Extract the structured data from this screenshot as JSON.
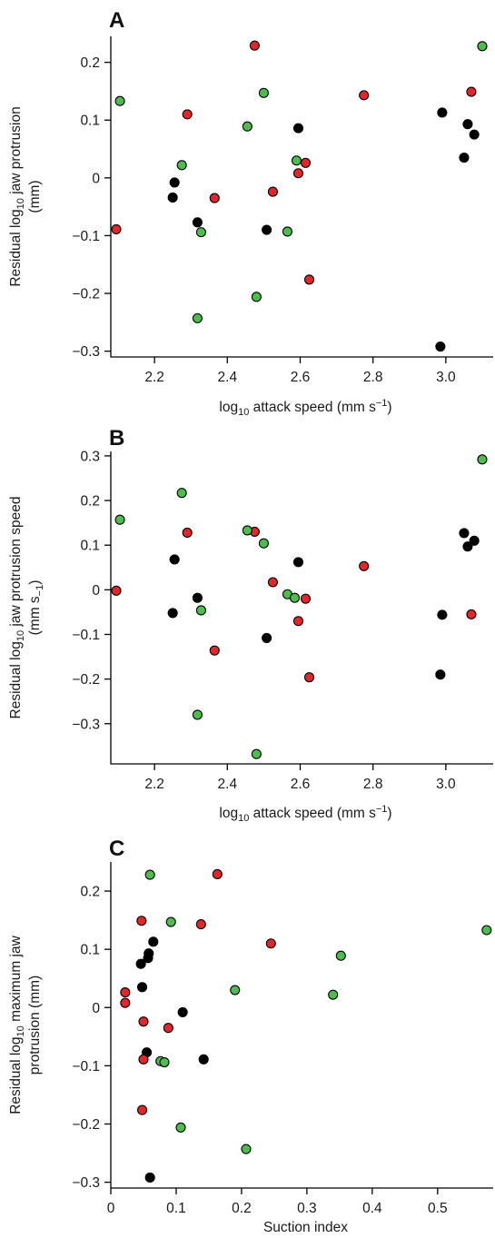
{
  "colors": {
    "black": "#000000",
    "red": "#e3262a",
    "green": "#4dbd4e"
  },
  "chart_data": [
    {
      "type": "scatter",
      "panel": "A",
      "xlabel_parts": [
        "log",
        "10",
        " attack speed (mm s",
        "−1",
        ")"
      ],
      "ylabel_lines": [
        [
          "Residual log",
          "10",
          " jaw protrusion"
        ],
        [
          "(mm)"
        ]
      ],
      "xlim": [
        2.08,
        3.13
      ],
      "ylim": [
        -0.31,
        0.245
      ],
      "xticks": [
        2.2,
        2.4,
        2.6,
        2.8,
        3.0
      ],
      "xtick_labels": [
        "2.2",
        "2.4",
        "2.6",
        "2.8",
        "3.0"
      ],
      "yticks": [
        -0.3,
        -0.2,
        -0.1,
        0,
        0.1,
        0.2
      ],
      "ytick_labels": [
        "−0.3",
        "−0.2",
        "−0.1",
        "0",
        "0.1",
        "0.2"
      ],
      "series": [
        {
          "color": "black",
          "points": [
            [
              2.255,
              -0.008
            ],
            [
              2.25,
              -0.034
            ],
            [
              2.318,
              -0.077
            ],
            [
              2.508,
              -0.09
            ],
            [
              2.595,
              0.086
            ],
            [
              2.99,
              0.113
            ],
            [
              3.06,
              0.093
            ],
            [
              3.078,
              0.075
            ],
            [
              3.05,
              0.035
            ],
            [
              2.985,
              -0.292
            ]
          ]
        },
        {
          "color": "red",
          "points": [
            [
              2.095,
              -0.089
            ],
            [
              2.29,
              0.11
            ],
            [
              2.365,
              -0.035
            ],
            [
              2.475,
              0.229
            ],
            [
              2.525,
              -0.024
            ],
            [
              2.595,
              0.008
            ],
            [
              2.615,
              0.026
            ],
            [
              2.625,
              -0.176
            ],
            [
              2.775,
              0.143
            ],
            [
              3.07,
              0.149
            ]
          ]
        },
        {
          "color": "green",
          "points": [
            [
              2.105,
              0.133
            ],
            [
              2.275,
              0.022
            ],
            [
              2.328,
              -0.094
            ],
            [
              2.318,
              -0.243
            ],
            [
              2.455,
              0.089
            ],
            [
              2.48,
              -0.206
            ],
            [
              2.5,
              0.147
            ],
            [
              2.565,
              -0.093
            ],
            [
              2.59,
              0.03
            ],
            [
              3.1,
              0.228
            ]
          ]
        }
      ]
    },
    {
      "type": "scatter",
      "panel": "B",
      "xlabel_parts": [
        "log",
        "10",
        " attack speed (mm s",
        "−1",
        ")"
      ],
      "ylabel_lines": [
        [
          "Residual log",
          "10",
          " jaw protrusion speed"
        ],
        [
          "(mm s",
          "−1",
          ")"
        ]
      ],
      "xlim": [
        2.08,
        3.13
      ],
      "ylim": [
        -0.39,
        0.31
      ],
      "xticks": [
        2.2,
        2.4,
        2.6,
        2.8,
        3.0
      ],
      "xtick_labels": [
        "2.2",
        "2.4",
        "2.6",
        "2.8",
        "3.0"
      ],
      "yticks": [
        -0.3,
        -0.2,
        -0.1,
        0,
        0.1,
        0.2,
        0.3
      ],
      "ytick_labels": [
        "−0.3",
        "−0.2",
        "−0.1",
        "0",
        "0.1",
        "0.2",
        "0.3"
      ],
      "series": [
        {
          "color": "black",
          "points": [
            [
              2.255,
              0.068
            ],
            [
              2.25,
              -0.052
            ],
            [
              2.318,
              -0.018
            ],
            [
              2.508,
              -0.108
            ],
            [
              2.595,
              0.062
            ],
            [
              2.99,
              -0.056
            ],
            [
              3.06,
              0.097
            ],
            [
              3.05,
              0.127
            ],
            [
              3.078,
              0.11
            ],
            [
              2.985,
              -0.19
            ]
          ]
        },
        {
          "color": "red",
          "points": [
            [
              2.095,
              -0.002
            ],
            [
              2.29,
              0.128
            ],
            [
              2.365,
              -0.136
            ],
            [
              2.475,
              0.13
            ],
            [
              2.525,
              0.017
            ],
            [
              2.595,
              -0.07
            ],
            [
              2.615,
              -0.02
            ],
            [
              2.625,
              -0.196
            ],
            [
              2.775,
              0.053
            ],
            [
              3.07,
              -0.055
            ]
          ]
        },
        {
          "color": "green",
          "points": [
            [
              2.105,
              0.157
            ],
            [
              2.275,
              0.217
            ],
            [
              2.328,
              -0.046
            ],
            [
              2.318,
              -0.28
            ],
            [
              2.455,
              0.133
            ],
            [
              2.48,
              -0.368
            ],
            [
              2.5,
              0.104
            ],
            [
              2.565,
              -0.01
            ],
            [
              2.585,
              -0.018
            ],
            [
              3.1,
              0.292
            ]
          ]
        }
      ]
    },
    {
      "type": "scatter",
      "panel": "C",
      "xlabel_parts": [
        "Suction index"
      ],
      "ylabel_lines": [
        [
          "Residual log",
          "10",
          " maximum jaw"
        ],
        [
          "protrusion (mm)"
        ]
      ],
      "xlim": [
        0,
        0.585
      ],
      "ylim": [
        -0.31,
        0.25
      ],
      "xticks": [
        0,
        0.1,
        0.2,
        0.3,
        0.4,
        0.5
      ],
      "xtick_labels": [
        "0",
        "0.1",
        "0.2",
        "0.3",
        "0.4",
        "0.5"
      ],
      "yticks": [
        -0.3,
        -0.2,
        -0.1,
        0,
        0.1,
        0.2
      ],
      "ytick_labels": [
        "−0.3",
        "−0.2",
        "−0.1",
        "0",
        "0.1",
        "0.2"
      ],
      "series": [
        {
          "color": "black",
          "points": [
            [
              0.065,
              0.113
            ],
            [
              0.058,
              0.093
            ],
            [
              0.057,
              0.085
            ],
            [
              0.046,
              0.075
            ],
            [
              0.048,
              0.035
            ],
            [
              0.11,
              -0.008
            ],
            [
              0.055,
              -0.077
            ],
            [
              0.142,
              -0.089
            ],
            [
              0.06,
              -0.292
            ]
          ]
        },
        {
          "color": "red",
          "points": [
            [
              0.022,
              0.026
            ],
            [
              0.022,
              0.008
            ],
            [
              0.047,
              0.149
            ],
            [
              0.05,
              -0.024
            ],
            [
              0.05,
              -0.089
            ],
            [
              0.048,
              -0.176
            ],
            [
              0.138,
              0.143
            ],
            [
              0.088,
              -0.035
            ],
            [
              0.163,
              0.229
            ],
            [
              0.245,
              0.11
            ]
          ]
        },
        {
          "color": "green",
          "points": [
            [
              0.06,
              0.228
            ],
            [
              0.092,
              0.147
            ],
            [
              0.076,
              -0.092
            ],
            [
              0.082,
              -0.094
            ],
            [
              0.107,
              -0.206
            ],
            [
              0.19,
              0.03
            ],
            [
              0.207,
              -0.243
            ],
            [
              0.34,
              0.022
            ],
            [
              0.352,
              0.089
            ],
            [
              0.575,
              0.133
            ]
          ]
        }
      ]
    }
  ]
}
